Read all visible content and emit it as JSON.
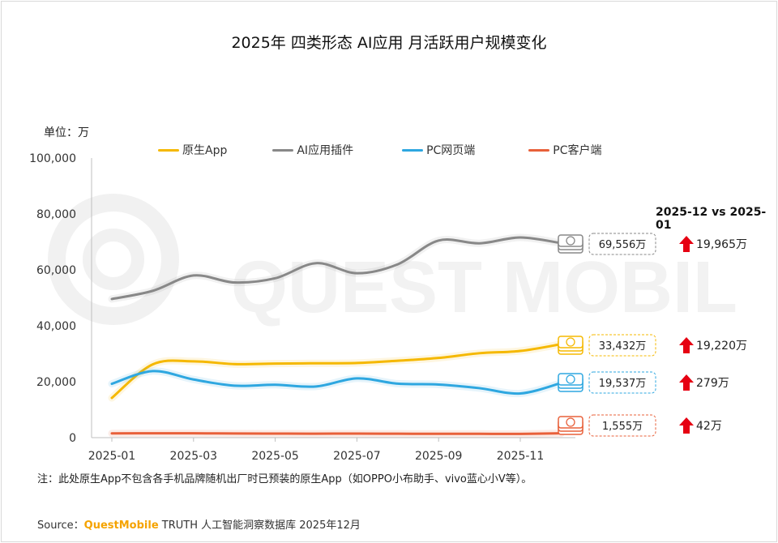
{
  "title": "2025年 四类形态 AI应用 月活跃用户规模变化",
  "unit_label": "单位：万",
  "comparison_title": "2025-12 vs 2025-01",
  "note": "注：此处原生App不包含各手机品牌随机出厂时已预装的原生App（如OPPO小布助手、vivo蓝心小V等）。",
  "source": {
    "prefix": "Source：",
    "brand": "QuestMobile",
    "rest": "TRUTH 人工智能洞察数据库 2025年12月"
  },
  "watermark": "QUEST MOBILE",
  "chart_data": {
    "type": "line",
    "title": "2025年 四类形态 AI应用 月活跃用户规模变化",
    "ylabel": "单位：万",
    "ylim": [
      0,
      100000
    ],
    "y_ticks": [
      "0",
      "20,000",
      "40,000",
      "60,000",
      "80,000",
      "100,000"
    ],
    "x": [
      "2025-01",
      "2025-02",
      "2025-03",
      "2025-04",
      "2025-05",
      "2025-06",
      "2025-07",
      "2025-08",
      "2025-09",
      "2025-10",
      "2025-11",
      "2025-12"
    ],
    "x_tick_labels": [
      "2025-01",
      "2025-03",
      "2025-05",
      "2025-07",
      "2025-09",
      "2025-11"
    ],
    "legend_position": "top",
    "series": [
      {
        "name": "原生App",
        "color": "#F5B800",
        "icon": "ai-app-icon",
        "values": [
          14212,
          26200,
          27300,
          26300,
          26500,
          26600,
          26700,
          27500,
          28500,
          30200,
          31000,
          33432
        ],
        "end_label": "33,432万",
        "delta": "19,220万"
      },
      {
        "name": "AI应用插件",
        "color": "#888888",
        "icon": "ai-plugin-icon",
        "values": [
          49591,
          52500,
          58000,
          55500,
          57000,
          62400,
          58800,
          62000,
          70500,
          69500,
          71600,
          69556
        ],
        "end_label": "69,556万",
        "delta": "19,965万"
      },
      {
        "name": "PC网页端",
        "color": "#2EA7E0",
        "icon": "pc-web-icon",
        "values": [
          19258,
          23800,
          20800,
          18600,
          18900,
          18300,
          21200,
          19300,
          19000,
          17700,
          15800,
          19537
        ],
        "end_label": "19,537万",
        "delta": "279万"
      },
      {
        "name": "PC客户端",
        "color": "#E8603A",
        "icon": "pc-client-icon",
        "values": [
          1513,
          1560,
          1550,
          1480,
          1440,
          1420,
          1460,
          1400,
          1380,
          1360,
          1340,
          1555
        ],
        "end_label": "1,555万",
        "delta": "42万"
      }
    ]
  }
}
